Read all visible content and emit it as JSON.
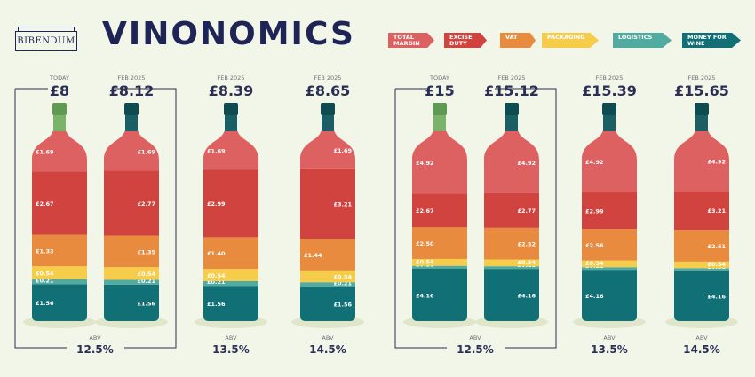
{
  "header": {
    "brand": "BIBENDUM",
    "title": "VINONOMICS"
  },
  "legend": [
    {
      "label": "TOTAL MARGIN",
      "color": "#dd6161"
    },
    {
      "label": "EXCISE DUTY",
      "color": "#d0433f"
    },
    {
      "label": "VAT",
      "color": "#e88b3e"
    },
    {
      "label": "PACKAGING",
      "color": "#f6cc4b"
    },
    {
      "label": "LOGISTICS",
      "color": "#52aba0"
    },
    {
      "label": "MONEY FOR WINE",
      "color": "#117076"
    }
  ],
  "chart_data": {
    "type": "bar",
    "stacked": true,
    "series_order": [
      "MONEY FOR WINE",
      "LOGISTICS",
      "PACKAGING",
      "VAT",
      "EXCISE DUTY",
      "TOTAL MARGIN"
    ],
    "groups": [
      {
        "bottles": [
          {
            "period": "TODAY",
            "price": "£8",
            "abs": "12.5%",
            "highlight": true,
            "values": {
              "wine": 1.56,
              "logistics": 0.21,
              "packaging": 0.54,
              "vat": 1.33,
              "duty": 2.67,
              "margin": 1.69
            }
          },
          {
            "period": "FEB 2025",
            "price": "£8.12",
            "abs": "12.5%",
            "values": {
              "wine": 1.56,
              "logistics": 0.21,
              "packaging": 0.54,
              "vat": 1.35,
              "duty": 2.77,
              "margin": 1.69
            }
          },
          {
            "period": "FEB 2025",
            "price": "£8.39",
            "abs": "13.5%",
            "values": {
              "wine": 1.56,
              "logistics": 0.21,
              "packaging": 0.54,
              "vat": 1.4,
              "duty": 2.99,
              "margin": 1.69
            }
          },
          {
            "period": "FEB 2025",
            "price": "£8.65",
            "abs": "14.5%",
            "values": {
              "wine": 1.56,
              "logistics": 0.21,
              "packaging": 0.54,
              "vat": 1.44,
              "duty": 3.21,
              "margin": 1.69
            }
          }
        ]
      },
      {
        "bottles": [
          {
            "period": "TODAY",
            "price": "£15",
            "abs": "12.5%",
            "highlight": true,
            "values": {
              "wine": 4.16,
              "logistics": 0.21,
              "packaging": 0.54,
              "vat": 2.5,
              "duty": 2.67,
              "margin": 4.92
            }
          },
          {
            "period": "FEB 2025",
            "price": "£15.12",
            "abs": "12.5%",
            "values": {
              "wine": 4.16,
              "logistics": 0.21,
              "packaging": 0.54,
              "vat": 2.52,
              "duty": 2.77,
              "margin": 4.92
            }
          },
          {
            "period": "FEB 2025",
            "price": "£15.39",
            "abs": "13.5%",
            "values": {
              "wine": 4.16,
              "logistics": 0.21,
              "packaging": 0.54,
              "vat": 2.56,
              "duty": 2.99,
              "margin": 4.92
            }
          },
          {
            "period": "FEB 2025",
            "price": "£15.65",
            "abs": "14.5%",
            "values": {
              "wine": 4.16,
              "logistics": 0.21,
              "packaging": 0.54,
              "vat": 2.61,
              "duty": 3.21,
              "margin": 4.92
            }
          }
        ]
      }
    ],
    "abv_label": "ABV"
  }
}
